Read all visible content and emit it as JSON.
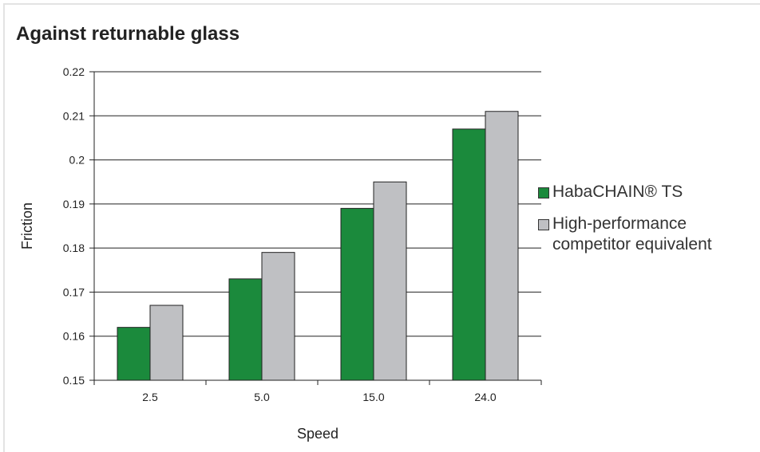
{
  "chart_data": {
    "type": "bar",
    "title": "Against returnable glass",
    "xlabel": "Speed",
    "ylabel": "Friction",
    "categories": [
      "2.5",
      "5.0",
      "15.0",
      "24.0"
    ],
    "series": [
      {
        "name": "HabaCHAIN® TS",
        "values": [
          0.162,
          0.173,
          0.189,
          0.207
        ],
        "color": "#1b8a3c"
      },
      {
        "name": "High-performance\ncompetitor equivalent",
        "values": [
          0.167,
          0.179,
          0.195,
          0.211
        ],
        "color": "#bfc0c3"
      }
    ],
    "ylim": [
      0.15,
      0.22
    ],
    "yticks": [
      "0.15",
      "0.16",
      "0.17",
      "0.18",
      "0.19",
      "0.2",
      "0.21",
      "0.22"
    ],
    "grid": true,
    "legend": "right"
  }
}
